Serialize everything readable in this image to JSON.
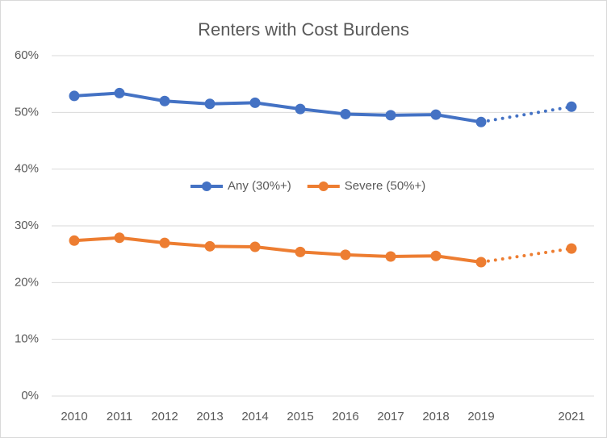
{
  "chart_data": {
    "type": "line",
    "title": "Renters with Cost Burdens",
    "categories": [
      "2010",
      "2011",
      "2012",
      "2013",
      "2014",
      "2015",
      "2016",
      "2017",
      "2018",
      "2019",
      null,
      "2021"
    ],
    "series": [
      {
        "name": "Any (30%+)",
        "color": "#4472c4",
        "values": [
          52.9,
          53.4,
          52.0,
          51.5,
          51.7,
          50.6,
          49.7,
          49.5,
          49.6,
          48.3,
          null,
          51.0
        ]
      },
      {
        "name": "Severe (50%+)",
        "color": "#ed7d31",
        "values": [
          27.4,
          27.9,
          27.0,
          26.4,
          26.3,
          25.4,
          24.9,
          24.6,
          24.7,
          23.6,
          null,
          26.0
        ]
      }
    ],
    "ylim": [
      0,
      60
    ],
    "yticks": [
      {
        "value": 0,
        "label": "0%"
      },
      {
        "value": 10,
        "label": "10%"
      },
      {
        "value": 20,
        "label": "20%"
      },
      {
        "value": 30,
        "label": "30%"
      },
      {
        "value": 40,
        "label": "40%"
      },
      {
        "value": 50,
        "label": "50%"
      },
      {
        "value": 60,
        "label": "60%"
      }
    ],
    "grid": true,
    "gap_line": "dotted",
    "legend": "center"
  }
}
